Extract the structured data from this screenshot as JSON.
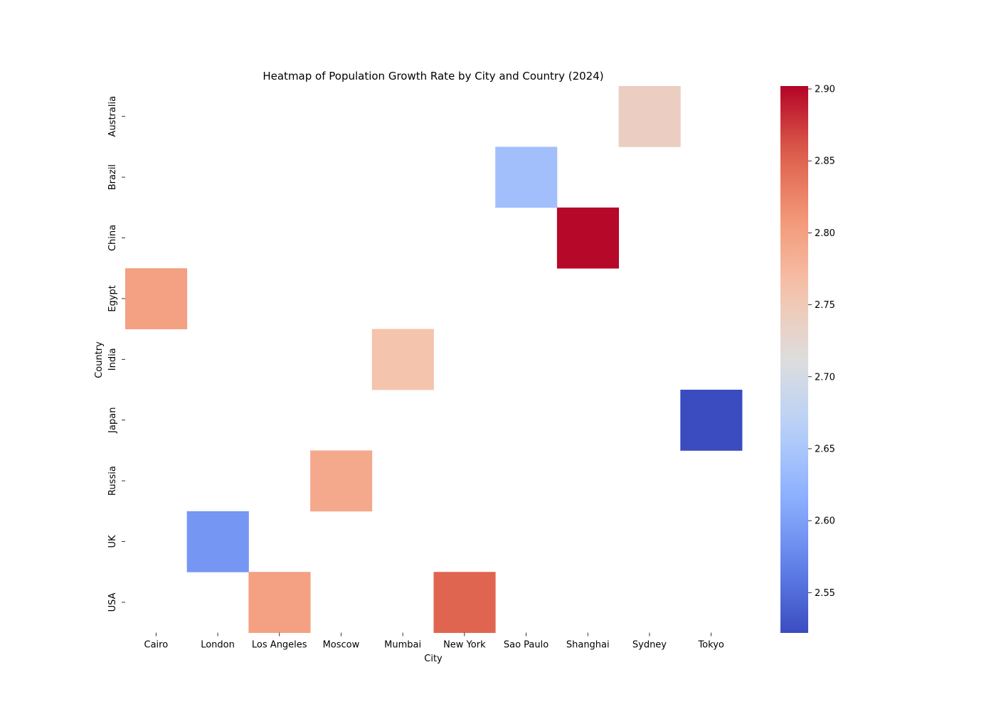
{
  "chart_data": {
    "type": "heatmap",
    "title": "Heatmap of Population Growth Rate by City and Country (2024)",
    "xlabel": "City",
    "ylabel": "Country",
    "x_categories": [
      "Cairo",
      "London",
      "Los Angeles",
      "Moscow",
      "Mumbai",
      "New York",
      "Sao Paulo",
      "Shanghai",
      "Sydney",
      "Tokyo"
    ],
    "y_categories": [
      "Australia",
      "Brazil",
      "China",
      "Egypt",
      "India",
      "Japan",
      "Russia",
      "UK",
      "USA"
    ],
    "cells": [
      {
        "x": "Sydney",
        "y": "Australia",
        "value": 2.74
      },
      {
        "x": "Sao Paulo",
        "y": "Brazil",
        "value": 2.64
      },
      {
        "x": "Shanghai",
        "y": "China",
        "value": 2.9
      },
      {
        "x": "Cairo",
        "y": "Egypt",
        "value": 2.8
      },
      {
        "x": "Mumbai",
        "y": "India",
        "value": 2.76
      },
      {
        "x": "Tokyo",
        "y": "Japan",
        "value": 2.52
      },
      {
        "x": "Moscow",
        "y": "Russia",
        "value": 2.79
      },
      {
        "x": "London",
        "y": "UK",
        "value": 2.59
      },
      {
        "x": "Los Angeles",
        "y": "USA",
        "value": 2.8
      },
      {
        "x": "New York",
        "y": "USA",
        "value": 2.85
      }
    ],
    "colormap": "coolwarm",
    "colorbar": {
      "vmin": 2.522,
      "vmax": 2.902,
      "ticks": [
        2.55,
        2.6,
        2.65,
        2.7,
        2.75,
        2.8,
        2.85,
        2.9
      ],
      "tick_labels": [
        "2.55",
        "2.60",
        "2.65",
        "2.70",
        "2.75",
        "2.80",
        "2.85",
        "2.90"
      ]
    }
  }
}
